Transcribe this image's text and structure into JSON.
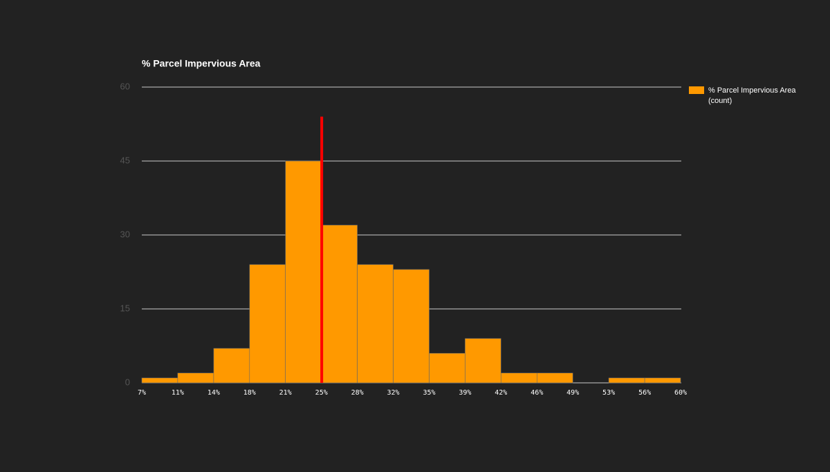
{
  "chart_data": {
    "type": "histogram",
    "title": "% Parcel Impervious Area",
    "legend": "% Parcel Impervious Area (count)",
    "legend_position": "right",
    "bins": [
      7,
      10.53,
      14.07,
      17.6,
      21.13,
      24.67,
      28.2,
      31.73,
      35.27,
      38.8,
      42.33,
      45.87,
      49.4,
      52.93,
      56.47,
      60
    ],
    "counts": [
      1,
      2,
      7,
      24,
      45,
      32,
      24,
      23,
      6,
      9,
      2,
      2,
      0,
      1,
      1
    ],
    "color": "#ff9900",
    "xlim": [
      7,
      60
    ],
    "xticks": [
      {
        "value": 7,
        "label": "7%"
      },
      {
        "value": 10.53,
        "label": "11%"
      },
      {
        "value": 14.07,
        "label": "14%"
      },
      {
        "value": 17.6,
        "label": "18%"
      },
      {
        "value": 21.13,
        "label": "21%"
      },
      {
        "value": 24.67,
        "label": "25%"
      },
      {
        "value": 28.2,
        "label": "28%"
      },
      {
        "value": 31.73,
        "label": "32%"
      },
      {
        "value": 35.27,
        "label": "35%"
      },
      {
        "value": 38.8,
        "label": "39%"
      },
      {
        "value": 42.33,
        "label": "42%"
      },
      {
        "value": 45.87,
        "label": "46%"
      },
      {
        "value": 49.4,
        "label": "49%"
      },
      {
        "value": 52.93,
        "label": "53%"
      },
      {
        "value": 56.47,
        "label": "56%"
      },
      {
        "value": 60,
        "label": "60%"
      }
    ],
    "ylim": [
      0,
      60
    ],
    "yticks": [
      0,
      15,
      30,
      45,
      60
    ],
    "grid": true,
    "marker": {
      "x": 24.7,
      "y": 54,
      "color": "#ff0000"
    }
  }
}
